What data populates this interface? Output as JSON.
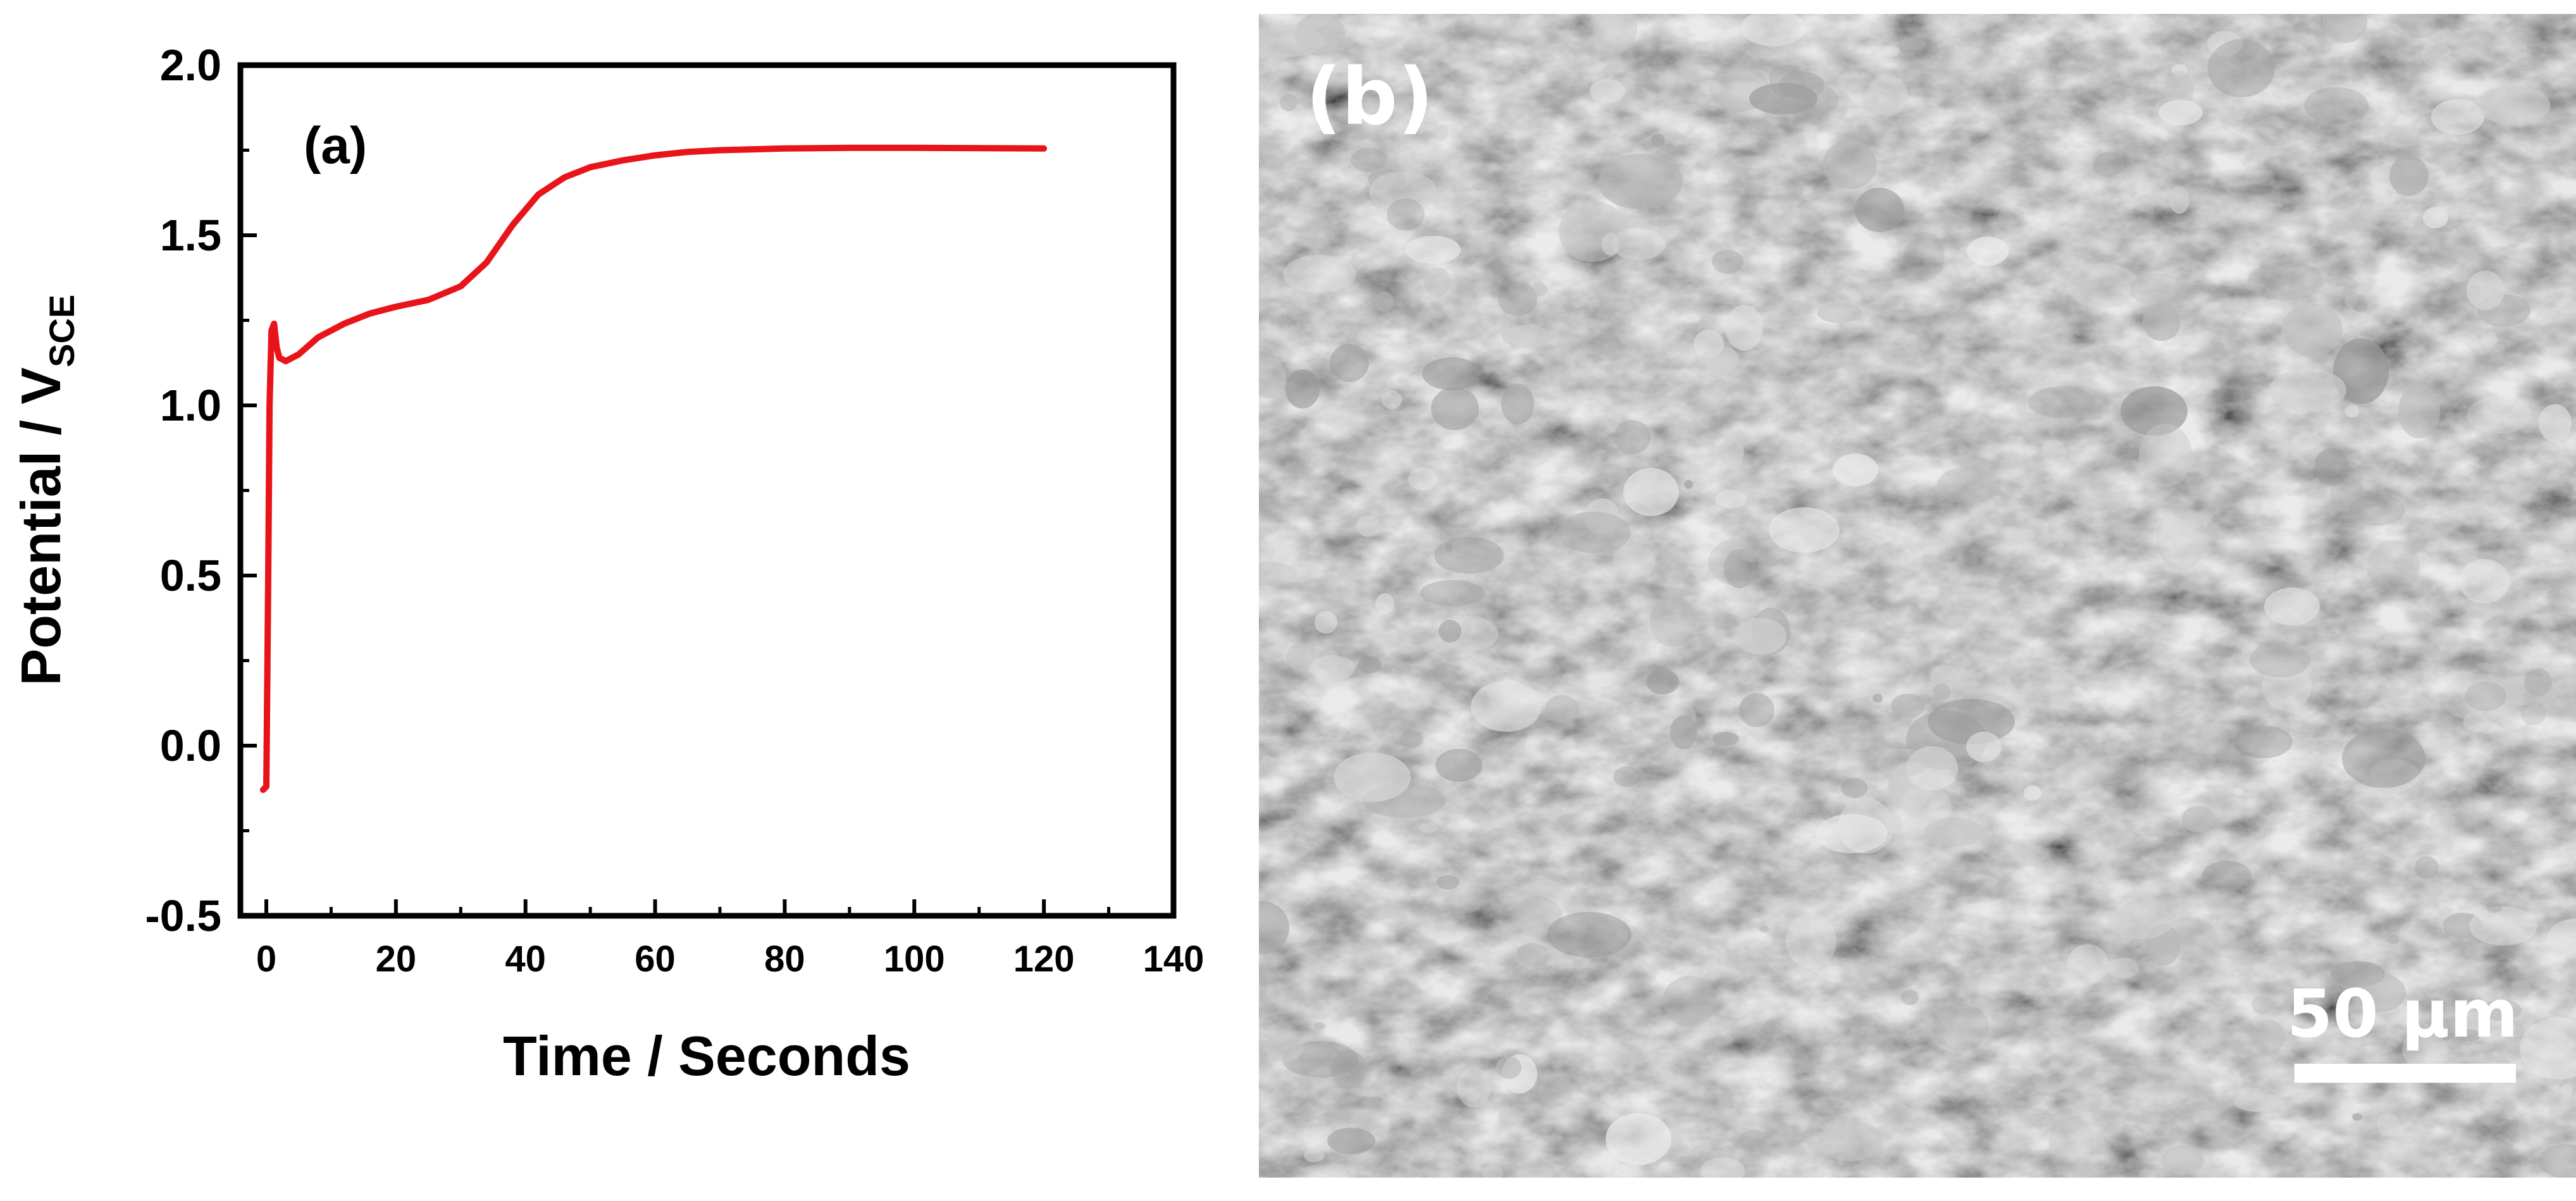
{
  "chart_data": {
    "type": "line",
    "panel_label": "(a)",
    "xlabel": "Time / Seconds",
    "ylabel_main": "Potential / V",
    "ylabel_sub": "SCE",
    "xlim": [
      -4,
      140
    ],
    "ylim": [
      -0.5,
      2.0
    ],
    "x_ticks": [
      0,
      20,
      40,
      60,
      80,
      100,
      120,
      140
    ],
    "y_ticks": [
      -0.5,
      0.0,
      0.5,
      1.0,
      1.5,
      2.0
    ],
    "x_tick_labels": [
      "0",
      "20",
      "40",
      "60",
      "80",
      "100",
      "120",
      "140"
    ],
    "y_tick_labels": [
      "-0.5",
      "0.0",
      "0.5",
      "1.0",
      "1.5",
      "2.0"
    ],
    "series": [
      {
        "color": "#e8141a",
        "x": [
          -0.5,
          0,
          0.3,
          0.5,
          0.8,
          1.2,
          1.6,
          2,
          3,
          5,
          8,
          12,
          16,
          20,
          25,
          30,
          34,
          38,
          42,
          46,
          50,
          55,
          60,
          65,
          70,
          80,
          90,
          100,
          110,
          120
        ],
        "y": [
          -0.13,
          -0.12,
          0.5,
          1.0,
          1.22,
          1.24,
          1.17,
          1.14,
          1.13,
          1.15,
          1.2,
          1.24,
          1.27,
          1.29,
          1.31,
          1.35,
          1.42,
          1.53,
          1.62,
          1.67,
          1.7,
          1.72,
          1.735,
          1.745,
          1.75,
          1.755,
          1.757,
          1.757,
          1.756,
          1.755
        ]
      }
    ]
  },
  "image_panel": {
    "label": "(b)",
    "scale_bar_label": "50 µm"
  }
}
